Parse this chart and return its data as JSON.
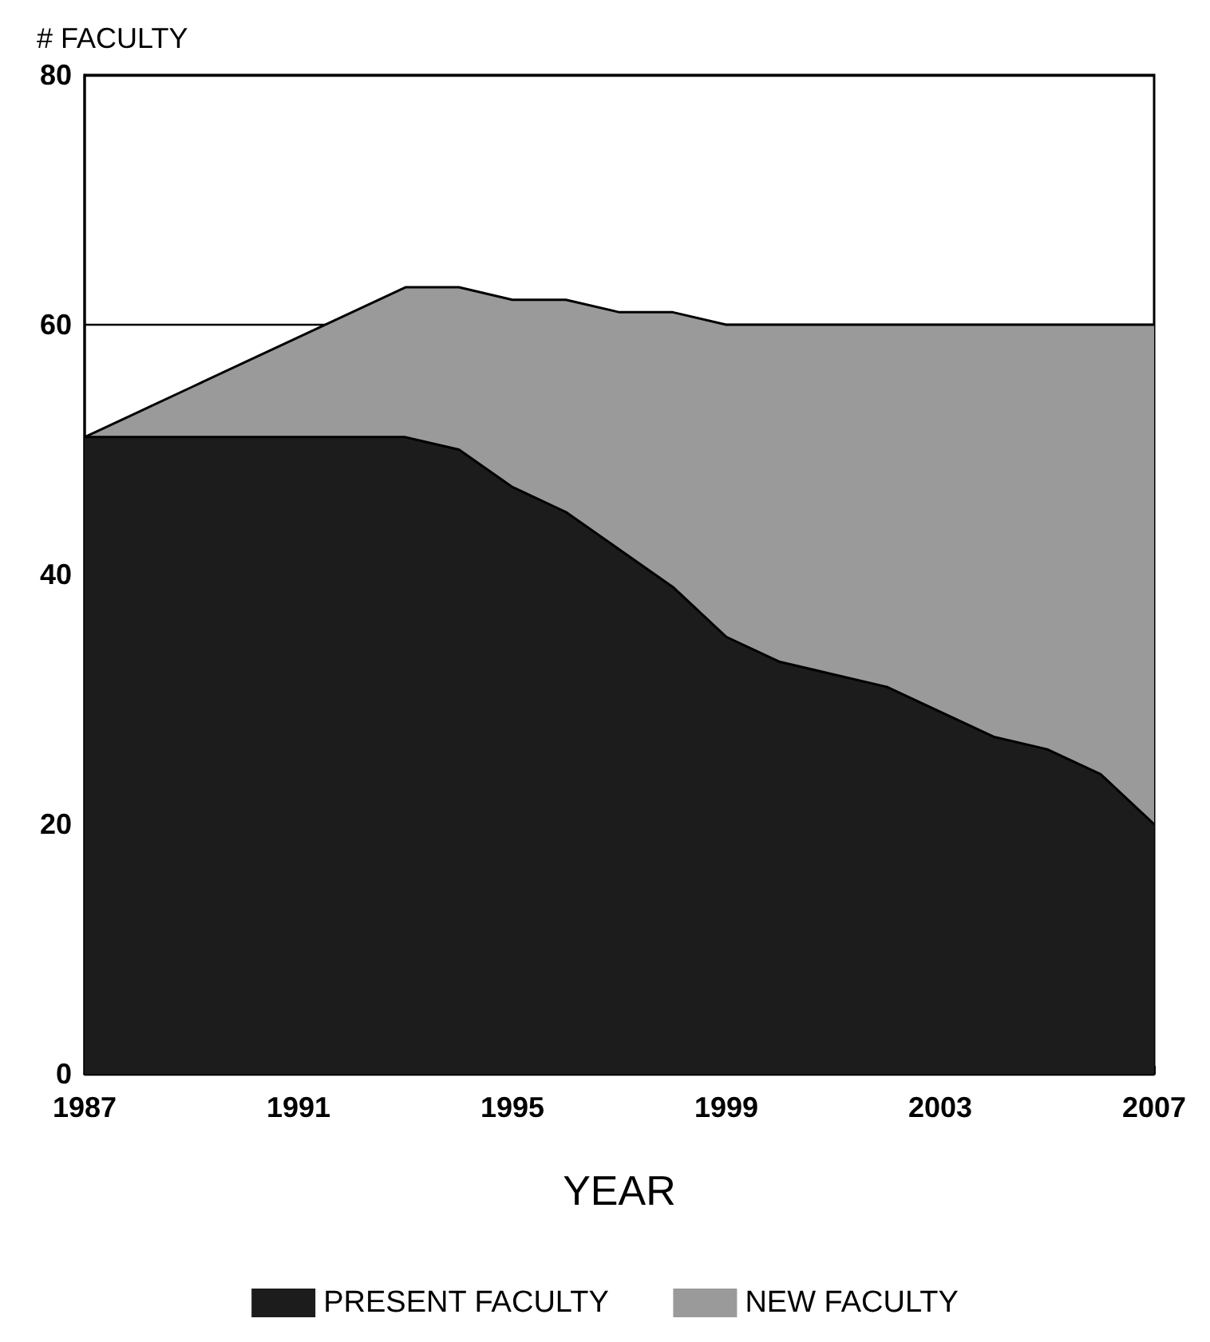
{
  "chart_data": {
    "type": "area",
    "stacked": true,
    "xlabel": "YEAR",
    "ylabel": "# FACULTY",
    "x": [
      1987,
      1988,
      1989,
      1990,
      1991,
      1992,
      1993,
      1994,
      1995,
      1996,
      1997,
      1998,
      1999,
      2000,
      2001,
      2002,
      2003,
      2004,
      2005,
      2006,
      2007
    ],
    "series": [
      {
        "name": "PRESENT FACULTY",
        "color": "#1c1c1c",
        "values": [
          51,
          51,
          51,
          51,
          51,
          51,
          51,
          50,
          47,
          45,
          42,
          39,
          35,
          33,
          32,
          31,
          29,
          27,
          26,
          24,
          20
        ]
      },
      {
        "name": "NEW FACULTY",
        "color": "#9a9a9a",
        "values": [
          0,
          2,
          4,
          6,
          8,
          10,
          12,
          13,
          15,
          17,
          19,
          22,
          25,
          27,
          28,
          29,
          31,
          33,
          34,
          36,
          40
        ]
      }
    ],
    "xlim": [
      1987,
      2007
    ],
    "xticks": [
      1987,
      1991,
      1995,
      1999,
      2003,
      2007
    ],
    "ylim": [
      0,
      80
    ],
    "yticks": [
      0,
      20,
      40,
      60,
      80
    ],
    "grid": "y",
    "legend": "bottom"
  }
}
